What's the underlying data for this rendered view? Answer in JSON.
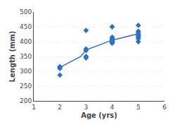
{
  "chart_data": {
    "type": "scatter",
    "xlabel": "Age (yrs)",
    "ylabel": "Length (mm)",
    "xlim": [
      1,
      6
    ],
    "ylim": [
      200,
      500
    ],
    "xticks": [
      1,
      2,
      3,
      4,
      5,
      6
    ],
    "yticks": [
      200,
      250,
      300,
      350,
      400,
      450,
      500
    ],
    "grid": "y",
    "series": [
      {
        "type": "scatter",
        "color": "#3070C0",
        "marker": "diamond",
        "x": [
          2.0,
          2.0,
          2.0,
          2.0,
          2.0,
          3.0,
          3.0,
          3.0,
          3.0,
          3.0,
          4.0,
          4.0,
          4.0,
          4.0,
          4.0,
          4.0,
          4.0,
          4.0,
          4.0,
          5.0,
          5.0,
          5.0,
          5.0,
          5.0,
          5.0,
          5.0,
          5.0,
          5.0
        ],
        "values": [
          315,
          310,
          287,
          310,
          315,
          375,
          370,
          350,
          345,
          438,
          450,
          415,
          405,
          400,
          400,
          395,
          395,
          405,
          410,
          455,
          435,
          430,
          425,
          420,
          415,
          410,
          400,
          420
        ]
      },
      {
        "type": "line",
        "color": "#3070C0",
        "line_style": "solid",
        "x": [
          2.0,
          2.8,
          3.0,
          4.0,
          5.0
        ],
        "values": [
          313,
          350,
          372,
          405,
          427
        ]
      }
    ]
  }
}
